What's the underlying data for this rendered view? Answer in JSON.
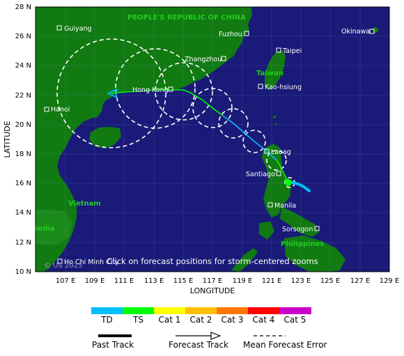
{
  "map": {
    "lat_ticks": [
      "28 N",
      "26 N",
      "24 N",
      "22 N",
      "20 N",
      "18 N",
      "16 N",
      "14 N",
      "12 N",
      "10 N"
    ],
    "lon_ticks": [
      "107 E",
      "109 E",
      "111 E",
      "113 E",
      "115 E",
      "117 E",
      "119 E",
      "121 E",
      "123 E",
      "125 E",
      "127 E",
      "129 E"
    ],
    "xlabel": "LONGITUDE",
    "ylabel": "LATITUDE",
    "countries": {
      "china": "PEOPLE'S REPUBLIC OF CHINA",
      "taiwan": "Taiwan",
      "vietnam": "Vietnam",
      "cambodia": "Cambodia",
      "philippines": "Philippines"
    },
    "cities": {
      "guiyang": "Guiyang",
      "fuzhou": "Fuzhou",
      "okinawa": "Okinawa",
      "taipei": "Taipei",
      "zhangzhou": "Zhangzhou",
      "hongkong": "Hong Kong",
      "kaohsiung": "Kao-hsiung",
      "hanoi": "Hanoi",
      "laoag": "Laoag",
      "santiago": "Santiago",
      "manila": "Manila",
      "sorsogon": "Sorsogon",
      "hochiminh": "Ho Chi Minh City"
    },
    "overlay_text": "Click on forecast positions for storm-centered zooms",
    "copyright": "© US 2025",
    "colors": {
      "ocean": "#1a1a78",
      "land": "#117a11",
      "td": "#00bfff",
      "ts": "#00ff00",
      "cat1": "#ffff00",
      "cat2": "#ffbf00",
      "cat3": "#ff7700",
      "cat4": "#ff0000",
      "cat5": "#cc00cc"
    }
  },
  "legend": {
    "scale": [
      "TD",
      "TS",
      "Cat 1",
      "Cat 2",
      "Cat 3",
      "Cat 4",
      "Cat 5"
    ],
    "past_track": "Past Track",
    "forecast_track": "Forecast Track",
    "mean_error": "Mean Forecast Error"
  }
}
